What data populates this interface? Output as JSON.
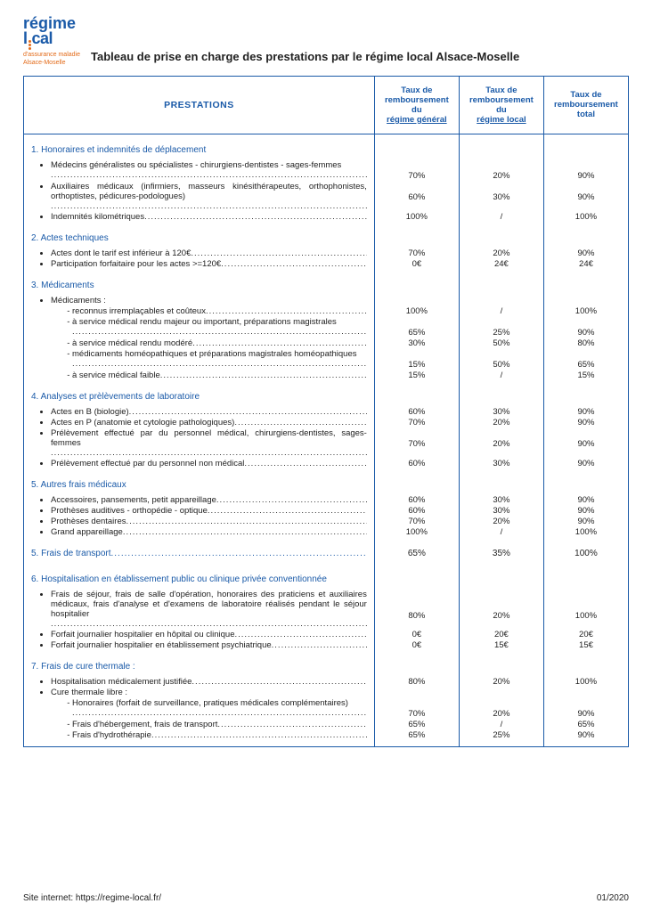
{
  "logo": {
    "line1": "régime",
    "line2_a": "l",
    "line2_b": "cal",
    "sub1": "d'assurance maladie",
    "sub2": "Alsace-Moselle"
  },
  "title": "Tableau de prise en charge des prestations par le régime local Alsace-Moselle",
  "columns": {
    "prestations": "PRESTATIONS",
    "c1_a": "Taux de",
    "c1_b": "remboursement du",
    "c1_c": "régime général",
    "c2_a": "Taux de",
    "c2_b": "remboursement du",
    "c2_c": "régime local",
    "c3_a": "Taux de",
    "c3_b": "remboursement",
    "c3_c": "total"
  },
  "sections": [
    {
      "title": "1. Honoraires et indemnités de déplacement",
      "rows": [
        {
          "label": "Médecins généralistes ou spécialistes - chirurgiens-dentistes - sages-femmes",
          "multi": true,
          "v": [
            "70%",
            "20%",
            "90%"
          ]
        },
        {
          "label": "Auxiliaires médicaux (infirmiers, masseurs kinésithérapeutes, orthophonistes, orthoptistes, pédicures-podologues)",
          "multi": true,
          "v": [
            "60%",
            "30%",
            "90%"
          ]
        },
        {
          "label": "Indemnités kilométriques",
          "v": [
            "100%",
            "/",
            "100%"
          ]
        }
      ]
    },
    {
      "title": "2. Actes techniques",
      "rows": [
        {
          "label": "Actes dont le tarif est inférieur à 120€",
          "v": [
            "70%",
            "20%",
            "90%"
          ]
        },
        {
          "label": "Participation forfaitaire pour les actes >=120€",
          "v": [
            "0€",
            "24€",
            "24€"
          ]
        }
      ]
    },
    {
      "title": "3. Médicaments",
      "rows": [
        {
          "label": "Médicaments :",
          "plain": true,
          "v": [
            "",
            "",
            ""
          ]
        },
        {
          "label": "reconnus irremplaçables et coûteux",
          "sub": true,
          "v": [
            "100%",
            "/",
            "100%"
          ]
        },
        {
          "label": "à service médical rendu majeur ou important, préparations magistrales",
          "sub": true,
          "multi": true,
          "v": [
            "65%",
            "25%",
            "90%"
          ]
        },
        {
          "label": "à service médical rendu modéré",
          "sub": true,
          "v": [
            "30%",
            "50%",
            "80%"
          ]
        },
        {
          "label": "médicaments homéopathiques et préparations magistrales homéopathiques",
          "sub": true,
          "multi": true,
          "v": [
            "15%",
            "50%",
            "65%"
          ]
        },
        {
          "label": "à service médical faible",
          "sub": true,
          "v": [
            "15%",
            "/",
            "15%"
          ]
        }
      ]
    },
    {
      "title": "4. Analyses et prèlèvements de laboratoire",
      "rows": [
        {
          "label": "Actes en B (biologie)",
          "v": [
            "60%",
            "30%",
            "90%"
          ]
        },
        {
          "label": "Actes en P (anatomie et cytologie pathologiques)",
          "v": [
            "70%",
            "20%",
            "90%"
          ]
        },
        {
          "label": "Prélèvement effectué par du personnel médical, chirurgiens-dentistes, sages-femmes",
          "multi": true,
          "v": [
            "70%",
            "20%",
            "90%"
          ]
        },
        {
          "label": "Prélèvement effectué par du personnel non médical",
          "v": [
            "60%",
            "30%",
            "90%"
          ]
        }
      ]
    },
    {
      "title": "5. Autres frais médicaux",
      "rows": [
        {
          "label": "Accessoires, pansements, petit appareillage",
          "v": [
            "60%",
            "30%",
            "90%"
          ]
        },
        {
          "label": "Prothèses auditives - orthopédie - optique",
          "v": [
            "60%",
            "30%",
            "90%"
          ]
        },
        {
          "label": "Prothèses dentaires",
          "v": [
            "70%",
            "20%",
            "90%"
          ]
        },
        {
          "label": "Grand appareillage",
          "v": [
            "100%",
            "/",
            "100%"
          ]
        }
      ]
    },
    {
      "title_inline": "5. Frais de transport",
      "v": [
        "65%",
        "35%",
        "100%"
      ]
    },
    {
      "title": "6. Hospitalisation en établissement public ou clinique privée conventionnée",
      "rows": [
        {
          "label": "Frais de séjour, frais de salle d'opération, honoraires des praticiens et auxiliaires médicaux, frais d'analyse et d'examens de laboratoire réalisés pendant le séjour hospitalier",
          "multi": 3,
          "v": [
            "80%",
            "20%",
            "100%"
          ]
        },
        {
          "label": "Forfait journalier hospitalier en hôpital ou clinique",
          "v": [
            "0€",
            "20€",
            "20€"
          ]
        },
        {
          "label": "Forfait journalier hospitalier en établissement psychiatrique",
          "v": [
            "0€",
            "15€",
            "15€"
          ]
        }
      ]
    },
    {
      "title": "7. Frais de cure thermale :",
      "rows": [
        {
          "label": "Hospitalisation médicalement justifiée",
          "v": [
            "80%",
            "20%",
            "100%"
          ]
        },
        {
          "label": "Cure thermale libre :",
          "plain": true,
          "v": [
            "",
            "",
            ""
          ]
        },
        {
          "label": "Honoraires (forfait de surveillance, pratiques médicales complémentaires)",
          "sub": true,
          "multi": true,
          "v": [
            "70%",
            "20%",
            "90%"
          ]
        },
        {
          "label": "Frais d'hébergement, frais de transport",
          "sub": true,
          "v": [
            "65%",
            "/",
            "65%"
          ]
        },
        {
          "label": "Frais d'hydrothérapie",
          "sub": true,
          "v": [
            "65%",
            "25%",
            "90%"
          ]
        }
      ]
    }
  ],
  "footer": {
    "left": "Site internet: https://regime-local.fr/",
    "right": "01/2020"
  },
  "colors": {
    "brand_blue": "#1a5aa8",
    "brand_orange": "#e36b1a",
    "border": "#1a5aa8"
  }
}
